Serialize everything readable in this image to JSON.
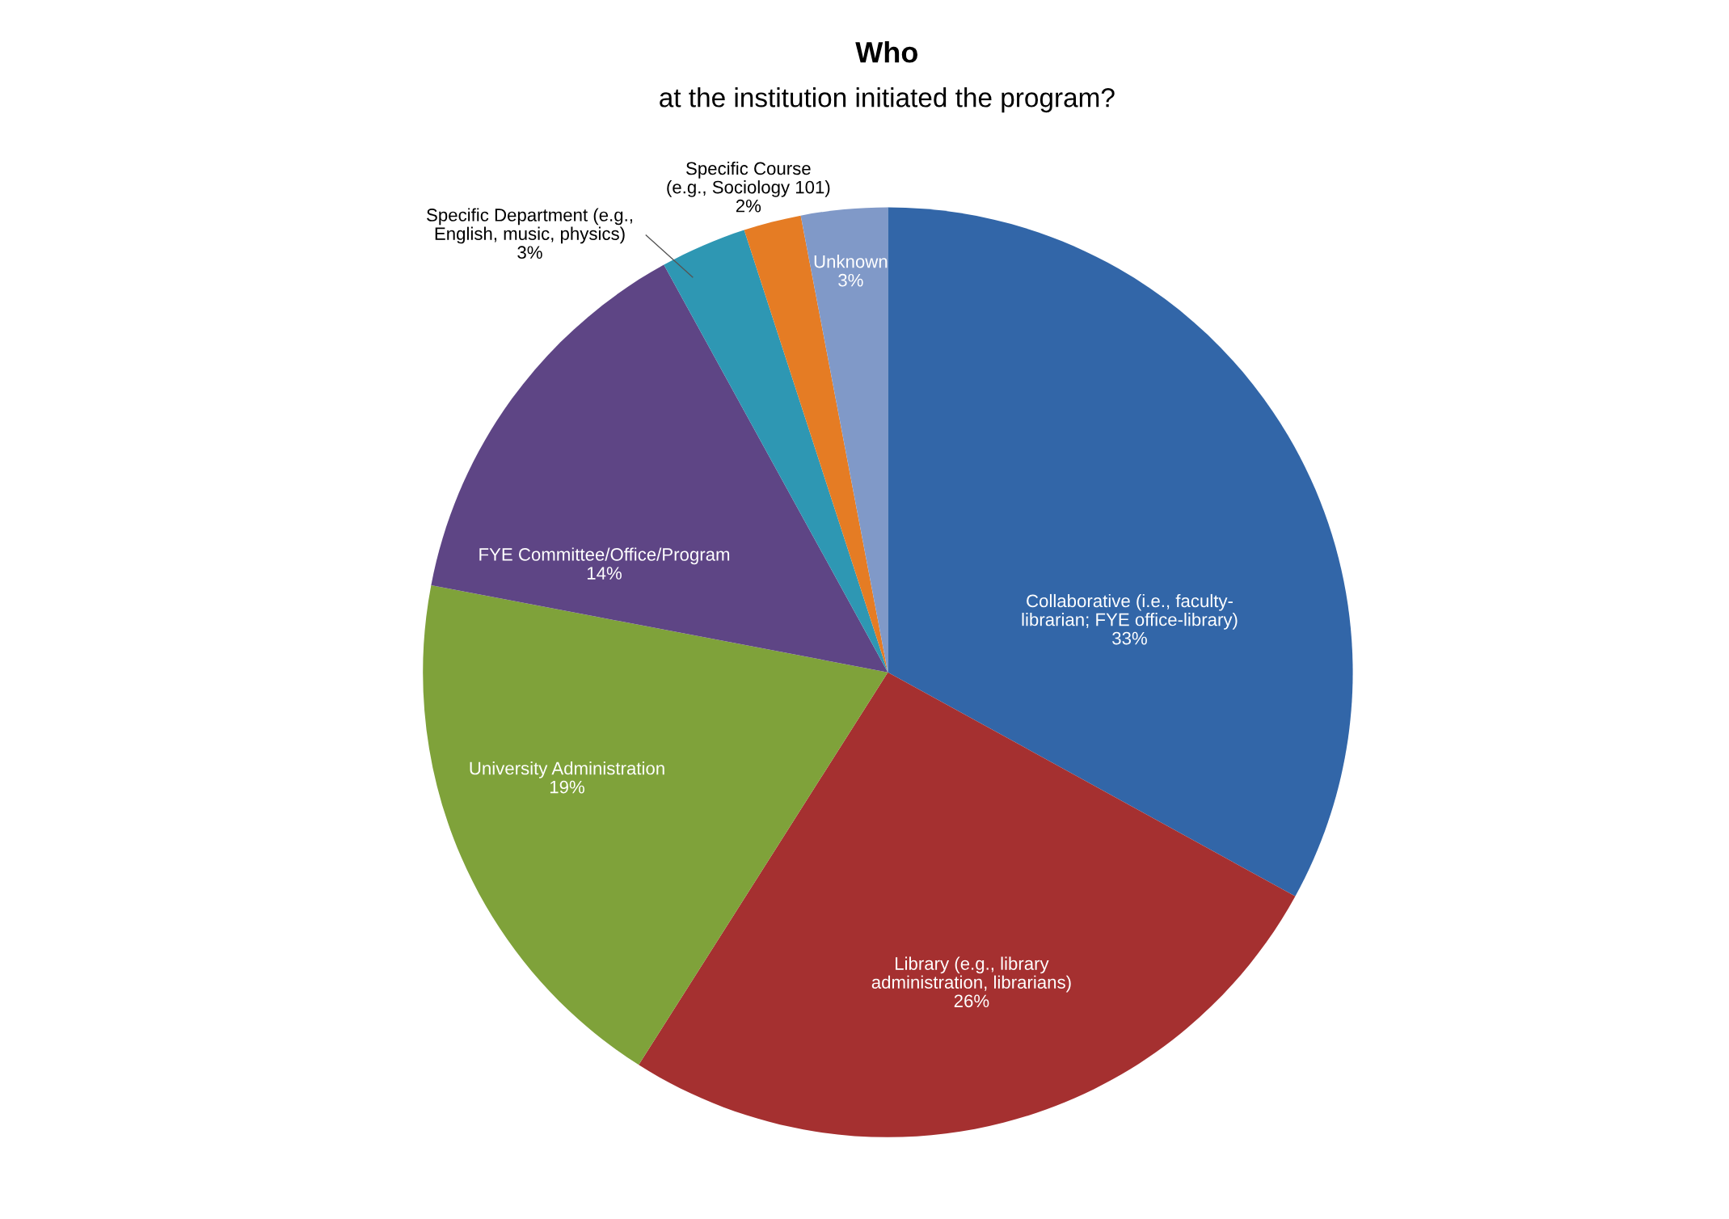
{
  "chart_data": {
    "type": "pie",
    "title": "Who",
    "subtitle": "at the institution initiated the program?",
    "categories": [
      "Collaborative (i.e., faculty-\nlibrarian; FYE office-library)",
      "Library (e.g., library\nadministration, librarians)",
      "University Administration",
      "FYE Committee/Office/Program",
      "Specific Department (e.g.,\nEnglish, music, physics)",
      "Specific Course\n(e.g., Sociology 101)",
      "Unknown"
    ],
    "values": [
      33,
      26,
      19,
      14,
      3,
      2,
      3
    ],
    "value_labels": [
      "33%",
      "26%",
      "19%",
      "14%",
      "3%",
      "2%",
      "3%"
    ],
    "colors": [
      "#3266a8",
      "#a53030",
      "#7fa23a",
      "#5e4585",
      "#2e97b3",
      "#e57c24",
      "#8099c8"
    ]
  }
}
